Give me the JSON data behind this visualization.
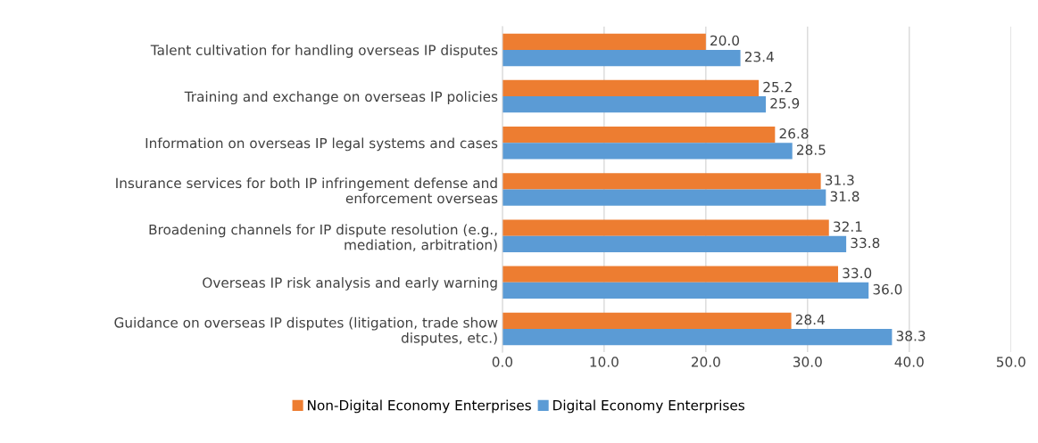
{
  "chart_data": {
    "type": "bar",
    "orientation": "horizontal",
    "categories": [
      "Talent cultivation for handling overseas IP disputes",
      "Training and exchange on overseas IP policies",
      "Information on overseas IP legal systems and cases",
      "Insurance services for both IP infringement defense and enforcement overseas",
      "Broadening channels for IP dispute resolution (e.g., mediation, arbitration)",
      "Overseas IP risk analysis and early warning",
      "Guidance on overseas IP disputes (litigation, trade show disputes, etc.)"
    ],
    "series": [
      {
        "name": "Non-Digital Economy Enterprises",
        "color": "#ed7d31",
        "values": [
          20.0,
          25.2,
          26.8,
          31.3,
          32.1,
          33.0,
          28.4
        ],
        "value_labels": [
          "20.0",
          "25.2",
          "26.8",
          "31.3",
          "32.1",
          "33.0",
          "28.4"
        ]
      },
      {
        "name": "Digital Economy Enterprises",
        "color": "#5b9bd5",
        "values": [
          23.4,
          25.9,
          28.5,
          31.8,
          33.8,
          36.0,
          38.3
        ],
        "value_labels": [
          "23.4",
          "25.9",
          "28.5",
          "31.8",
          "33.8",
          "36.0",
          "38.3"
        ]
      }
    ],
    "xlim": [
      0,
      50
    ],
    "xticks": [
      {
        "value": 0,
        "label": "0.0"
      },
      {
        "value": 10,
        "label": "10.0"
      },
      {
        "value": 20,
        "label": "20.0"
      },
      {
        "value": 30,
        "label": "30.0"
      },
      {
        "value": 40,
        "label": "40.0"
      },
      {
        "value": 50,
        "label": "50.0"
      }
    ],
    "grid": "x",
    "legend": "bottom"
  }
}
